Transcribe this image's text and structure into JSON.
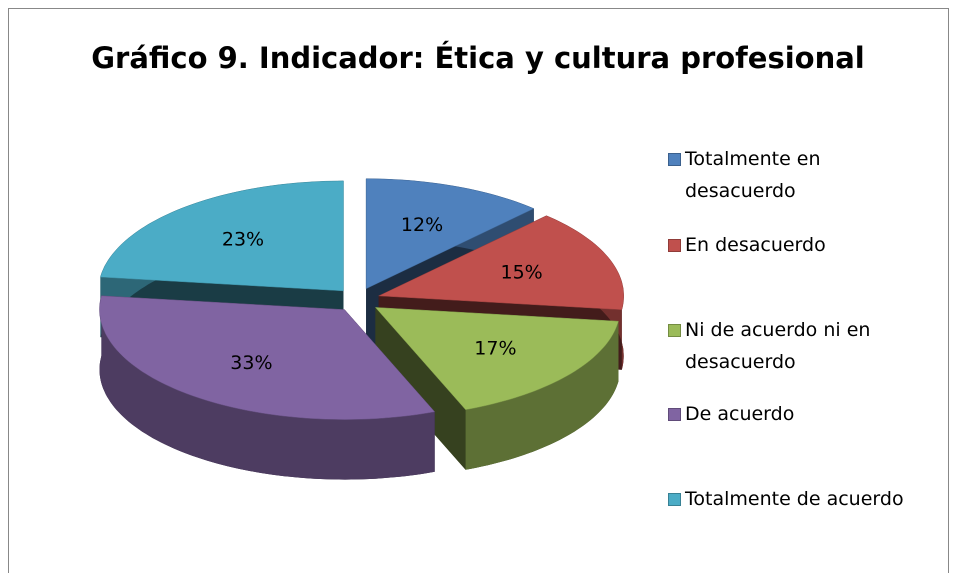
{
  "chart_data": {
    "type": "pie",
    "title": "Gráfico 9. Indicador: Ética y cultura profesional",
    "categories": [
      "Totalmente en desacuerdo",
      "En desacuerdo",
      "Ni de acuerdo ni en desacuerdo",
      "De acuerdo",
      "Totalmente de acuerdo"
    ],
    "values": [
      12,
      15,
      17,
      33,
      23
    ],
    "value_labels": [
      "12%",
      "15%",
      "17%",
      "33%",
      "23%"
    ],
    "colors": [
      "#4f81bd",
      "#c0504d",
      "#9bbb59",
      "#8064a2",
      "#4bacc6"
    ],
    "legend": "right"
  }
}
